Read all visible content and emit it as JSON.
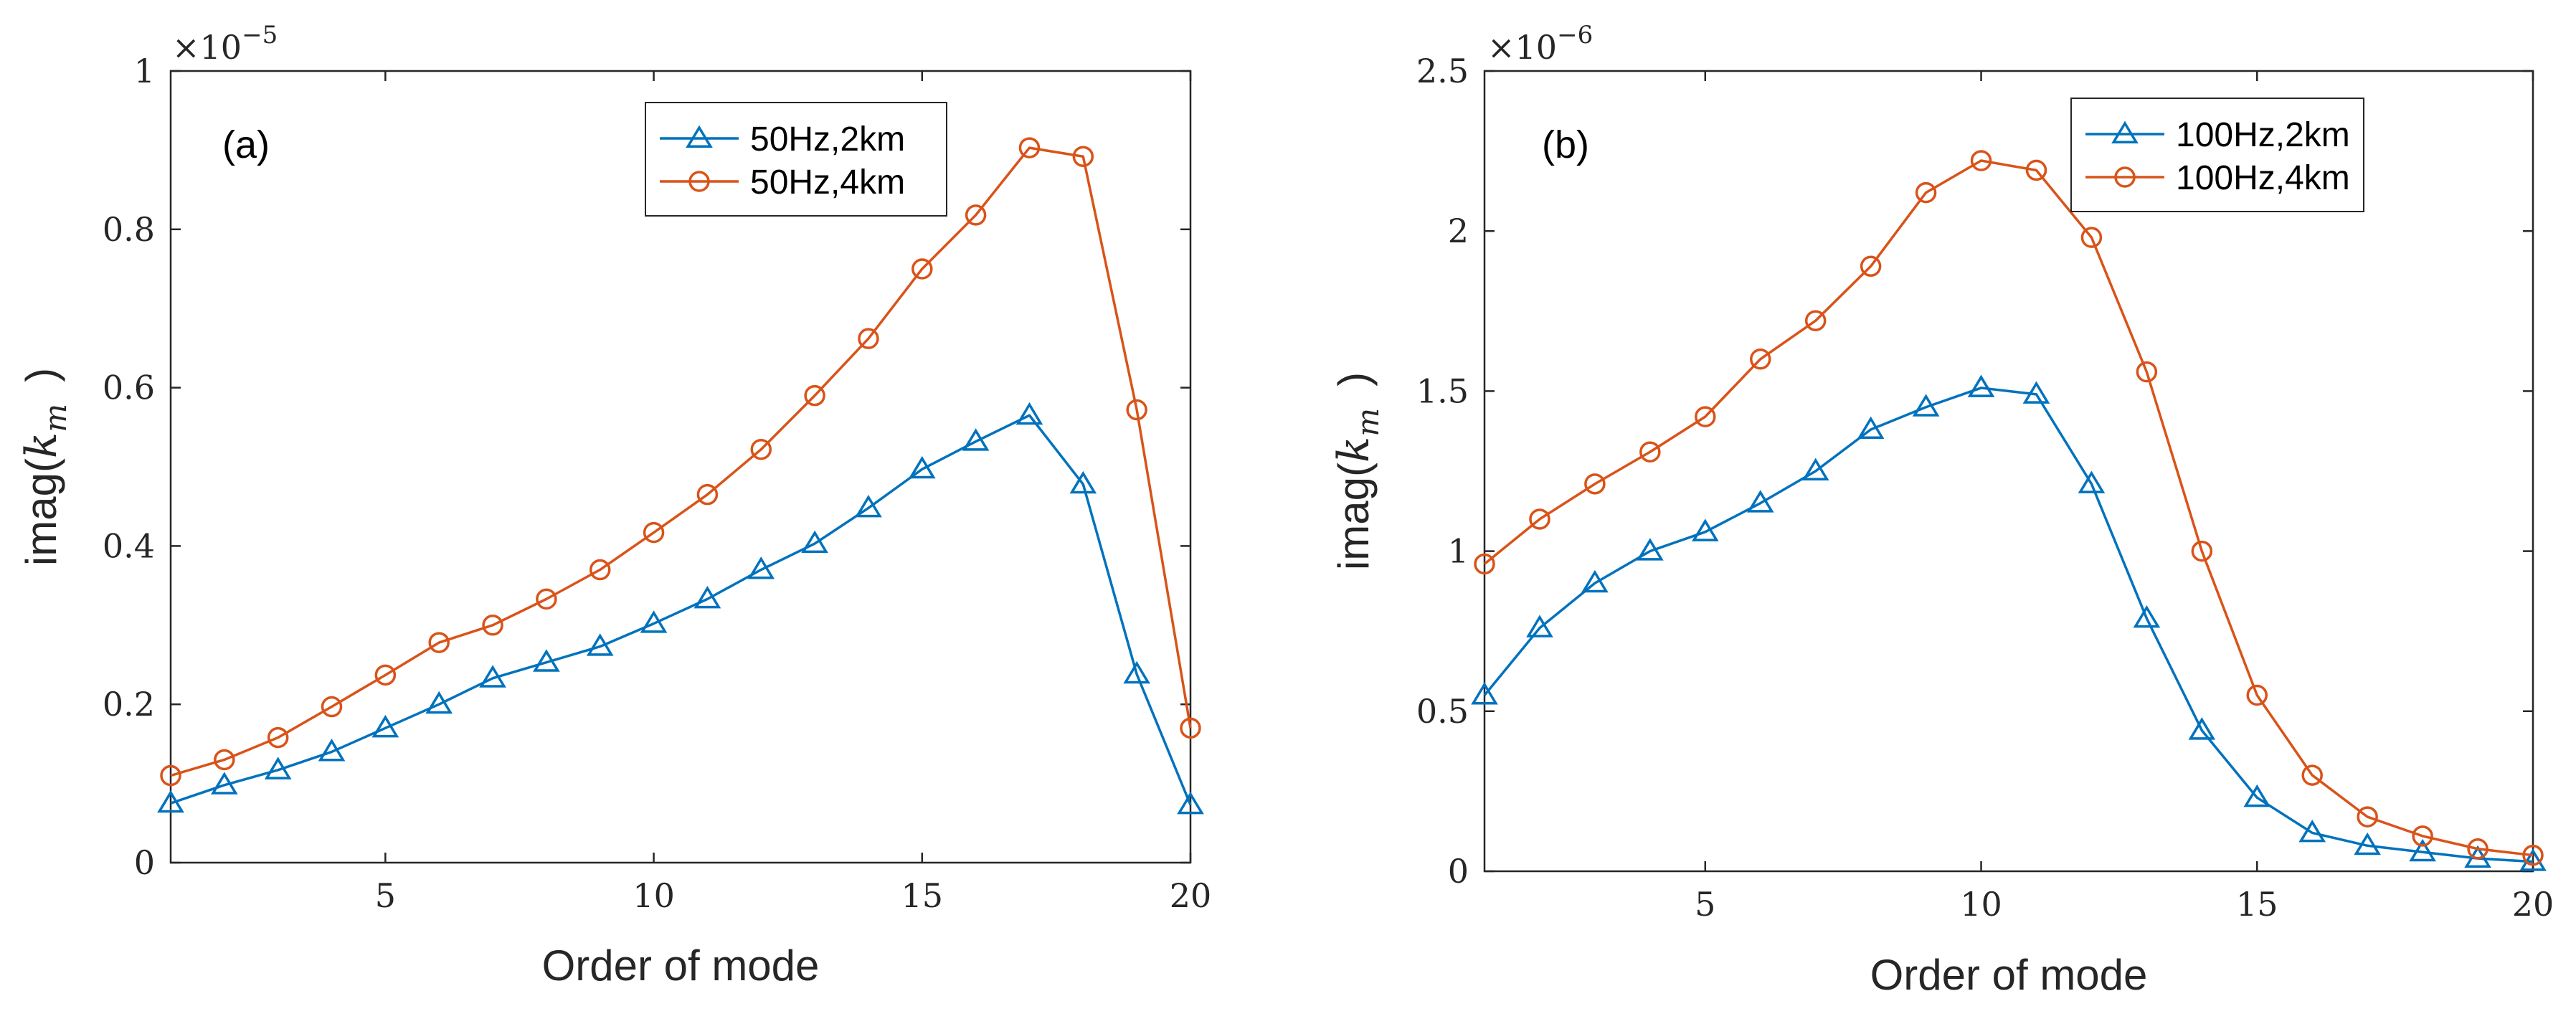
{
  "chart_data": [
    {
      "type": "line",
      "panel": "(a)",
      "xlabel": "Order of mode",
      "ylabel": {
        "prefix": "imag(",
        "symbol": "k",
        "subscript": "m",
        "suffix": ")"
      },
      "xlim": [
        1,
        20
      ],
      "ylim": [
        0,
        1
      ],
      "xticks": [
        5,
        10,
        15,
        20
      ],
      "yticks": [
        0,
        0.2,
        0.4,
        0.6,
        0.8,
        1
      ],
      "ytick_labels": [
        "0",
        "0.2",
        "0.4",
        "0.6",
        "0.8",
        "1"
      ],
      "y_exponent": {
        "base": "×10",
        "power": "−5"
      },
      "legend_position": "top-right",
      "x": [
        1,
        2,
        3,
        4,
        5,
        6,
        7,
        8,
        9,
        10,
        11,
        12,
        13,
        14,
        15,
        16,
        17,
        18,
        19,
        20
      ],
      "series": [
        {
          "name": "50Hz,2km",
          "color": "#0072BD",
          "marker": "triangle",
          "values": [
            0.075,
            0.098,
            0.117,
            0.14,
            0.17,
            0.2,
            0.233,
            0.253,
            0.273,
            0.302,
            0.333,
            0.37,
            0.403,
            0.448,
            0.497,
            0.532,
            0.565,
            0.478,
            0.238,
            0.073
          ]
        },
        {
          "name": "50Hz,4km",
          "color": "#D95319",
          "marker": "circle",
          "values": [
            0.11,
            0.13,
            0.158,
            0.197,
            0.237,
            0.278,
            0.3,
            0.333,
            0.37,
            0.417,
            0.465,
            0.522,
            0.59,
            0.662,
            0.75,
            0.818,
            0.903,
            0.892,
            0.572,
            0.17
          ]
        }
      ]
    },
    {
      "type": "line",
      "panel": "(b)",
      "xlabel": "Order of mode",
      "ylabel": {
        "prefix": "imag(",
        "symbol": "k",
        "subscript": "m",
        "suffix": ")"
      },
      "xlim": [
        1,
        20
      ],
      "ylim": [
        0,
        2.5
      ],
      "xticks": [
        5,
        10,
        15,
        20
      ],
      "yticks": [
        0,
        0.5,
        1,
        1.5,
        2,
        2.5
      ],
      "ytick_labels": [
        "0",
        "0.5",
        "1",
        "1.5",
        "2",
        "2.5"
      ],
      "y_exponent": {
        "base": "×10",
        "power": "−6"
      },
      "legend_position": "top-right",
      "x": [
        1,
        2,
        3,
        4,
        5,
        6,
        7,
        8,
        9,
        10,
        11,
        12,
        13,
        14,
        15,
        16,
        17,
        18,
        19,
        20
      ],
      "series": [
        {
          "name": "100Hz,2km",
          "color": "#0072BD",
          "marker": "triangle",
          "values": [
            0.55,
            0.76,
            0.9,
            1.0,
            1.06,
            1.15,
            1.25,
            1.38,
            1.45,
            1.51,
            1.49,
            1.21,
            0.79,
            0.44,
            0.23,
            0.12,
            0.08,
            0.06,
            0.04,
            0.03
          ]
        },
        {
          "name": "100Hz,4km",
          "color": "#D95319",
          "marker": "circle",
          "values": [
            0.96,
            1.1,
            1.21,
            1.31,
            1.42,
            1.6,
            1.72,
            1.89,
            2.12,
            2.22,
            2.19,
            1.98,
            1.56,
            1.0,
            0.55,
            0.3,
            0.17,
            0.11,
            0.07,
            0.05
          ]
        }
      ]
    }
  ]
}
